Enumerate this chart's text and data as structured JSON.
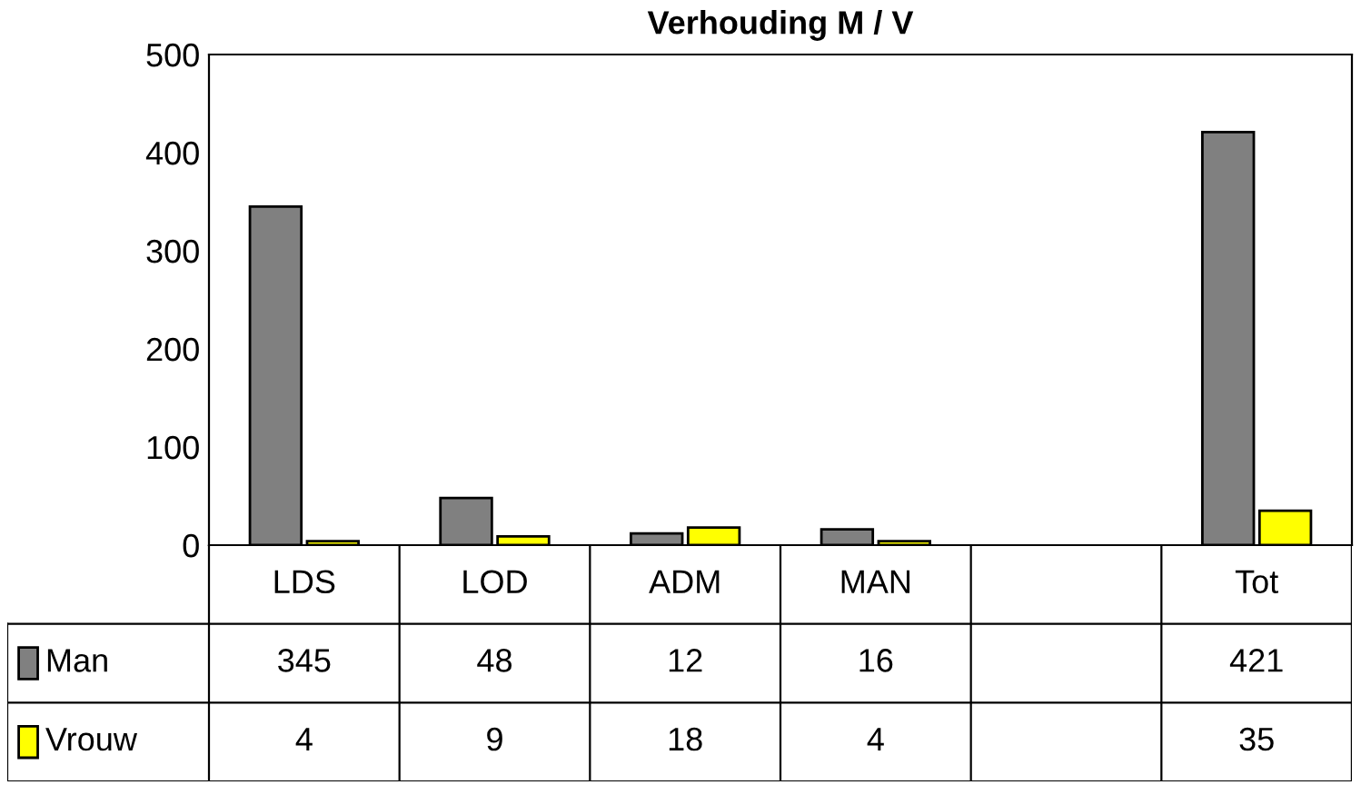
{
  "chart_data": {
    "type": "bar",
    "title": "Verhouding M / V",
    "categories": [
      "LDS",
      "LOD",
      "ADM",
      "MAN",
      null,
      "Tot"
    ],
    "series": [
      {
        "name": "Man",
        "color": "#808080",
        "values": [
          345,
          48,
          12,
          16,
          null,
          421
        ]
      },
      {
        "name": "Vrouw",
        "color": "#ffff00",
        "values": [
          4,
          9,
          18,
          4,
          null,
          35
        ]
      }
    ],
    "ylim": [
      0,
      500
    ],
    "yticks": [
      0,
      100,
      200,
      300,
      400,
      500
    ],
    "data_labels": true,
    "legend": "bottom"
  }
}
